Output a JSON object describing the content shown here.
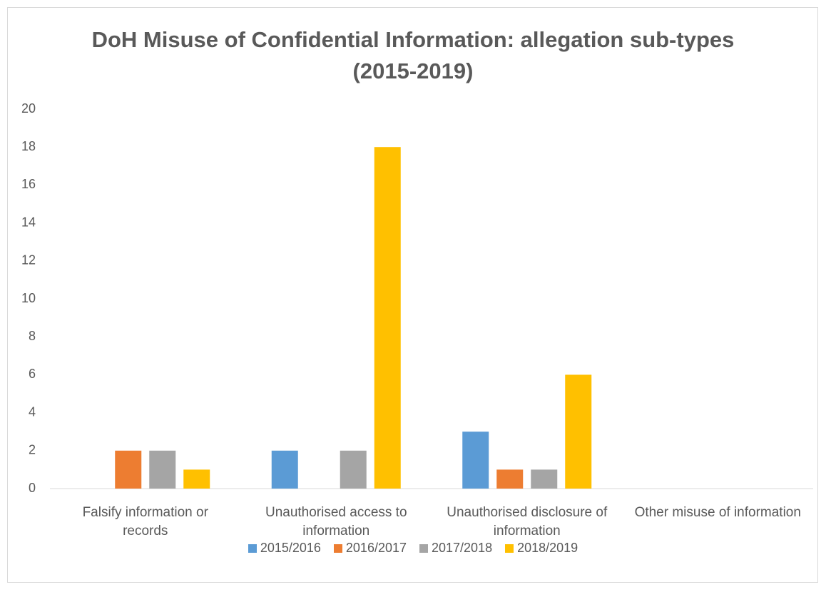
{
  "chart_data": {
    "type": "bar",
    "title": "DoH Misuse of Confidential Information: allegation sub-types (2015-2019)",
    "categories": [
      "Falsify information or records",
      "Unauthorised access to information",
      "Unauthorised disclosure of information",
      "Other misuse of information"
    ],
    "series": [
      {
        "name": "2015/2016",
        "color": "#5b9bd5",
        "values": [
          0,
          2,
          3,
          0
        ]
      },
      {
        "name": "2016/2017",
        "color": "#ed7d31",
        "values": [
          2,
          0,
          1,
          0
        ]
      },
      {
        "name": "2017/2018",
        "color": "#a5a5a5",
        "values": [
          2,
          2,
          1,
          0
        ]
      },
      {
        "name": "2018/2019",
        "color": "#ffc000",
        "values": [
          1,
          18,
          6,
          0
        ]
      }
    ],
    "ylim": [
      0,
      20
    ],
    "yticks": [
      0,
      2,
      4,
      6,
      8,
      10,
      12,
      14,
      16,
      18,
      20
    ],
    "grid": false
  }
}
